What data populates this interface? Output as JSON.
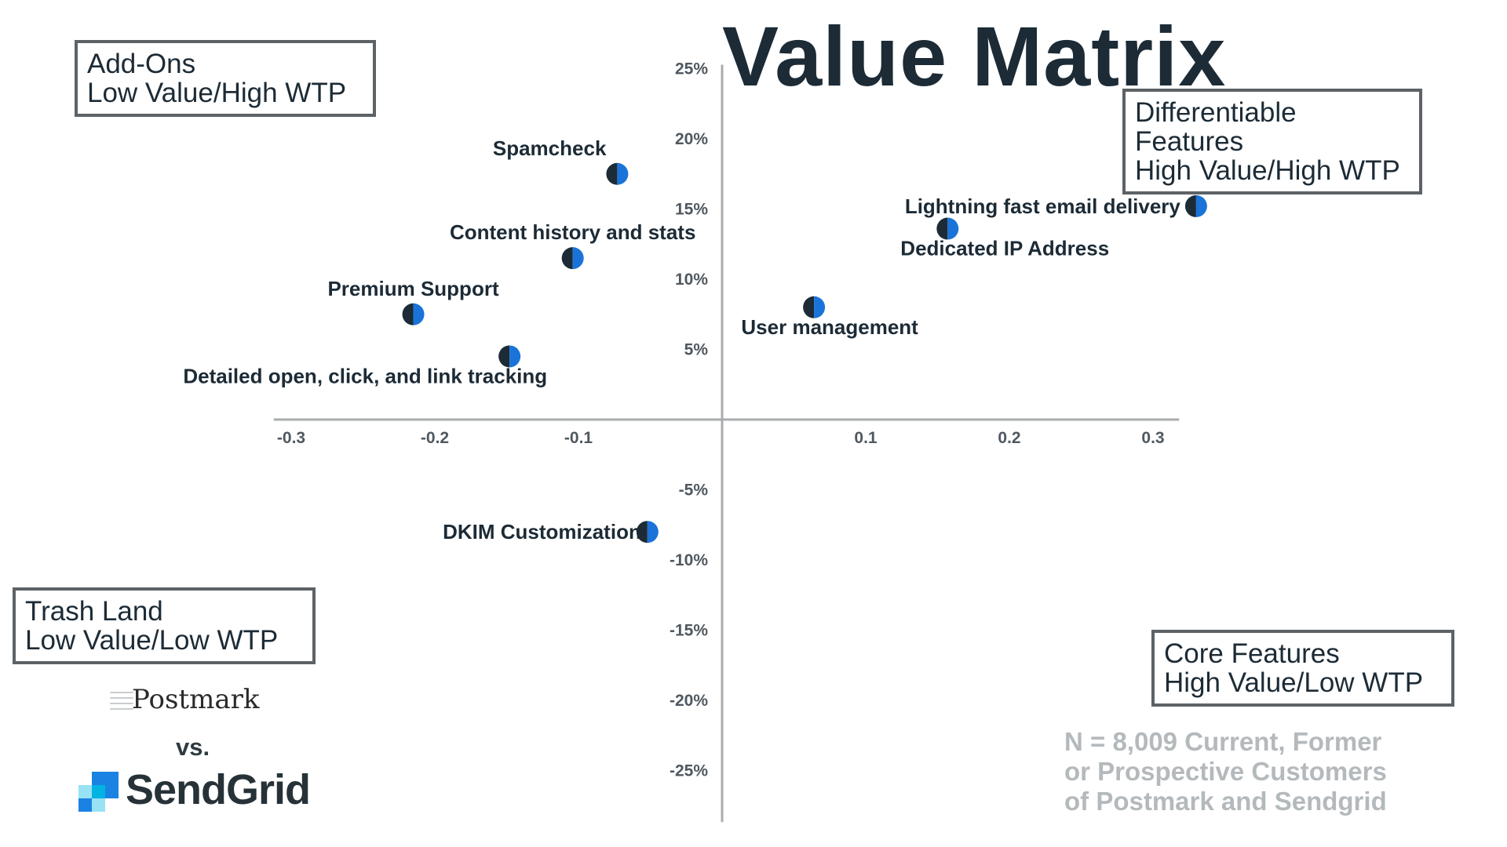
{
  "title": "Value Matrix",
  "quadrants": {
    "top_left": [
      "Add-Ons",
      "Low Value/High WTP"
    ],
    "top_right": [
      "Differentiable",
      "Features",
      "High Value/High WTP"
    ],
    "bottom_left": [
      "Trash Land",
      "Low Value/Low WTP"
    ],
    "bottom_right": [
      "Core Features",
      "High Value/Low WTP"
    ]
  },
  "note": [
    "N = 8,009 Current, Former",
    "or Prospective Customers",
    "of Postmark and Sendgrid"
  ],
  "logos": {
    "postmark": "Postmark",
    "vs": "vs.",
    "sendgrid": "SendGrid"
  },
  "colors": {
    "text": "#1c2b36",
    "axis": "#a8acae",
    "dot_dark": "#1c2b36",
    "dot_blue": "#1a73d9",
    "box_border": "#5c6266",
    "note": "#b4b9bc"
  },
  "chart_data": {
    "type": "scatter",
    "title": "Value Matrix",
    "xlabel": "",
    "ylabel": "",
    "xlim": [
      -0.31,
      0.31
    ],
    "ylim": [
      -0.27,
      0.25
    ],
    "x_ticks": [
      -0.3,
      -0.2,
      -0.1,
      0.1,
      0.2,
      0.3
    ],
    "x_tick_labels": [
      "-0.3",
      "-0.2",
      "-0.1",
      "0.1",
      "0.2",
      "0.3"
    ],
    "y_ticks": [
      0.25,
      0.2,
      0.15,
      0.1,
      0.05,
      -0.05,
      -0.1,
      -0.15,
      -0.2,
      -0.25
    ],
    "y_tick_labels": [
      "25%",
      "20%",
      "15%",
      "10%",
      "5%",
      "-5%",
      "-10%",
      "-15%",
      "-20%",
      "-25%"
    ],
    "points": [
      {
        "label": "Spamcheck",
        "x": -0.073,
        "y": 0.175,
        "label_pos": "above-left"
      },
      {
        "label": "Content history and stats",
        "x": -0.104,
        "y": 0.115,
        "label_pos": "above"
      },
      {
        "label": "Premium Support",
        "x": -0.215,
        "y": 0.075,
        "label_pos": "above"
      },
      {
        "label": "Detailed open, click, and link tracking",
        "x": -0.148,
        "y": 0.045,
        "label_pos": "below-left"
      },
      {
        "label": "DKIM Customization",
        "x": -0.052,
        "y": -0.08,
        "label_pos": "left"
      },
      {
        "label": "Lightning fast email delivery",
        "x": 0.33,
        "y": 0.152,
        "label_pos": "left"
      },
      {
        "label": "Dedicated IP Address",
        "x": 0.157,
        "y": 0.136,
        "label_pos": "below-right"
      },
      {
        "label": "User management",
        "x": 0.064,
        "y": 0.08,
        "label_pos": "below"
      }
    ]
  }
}
